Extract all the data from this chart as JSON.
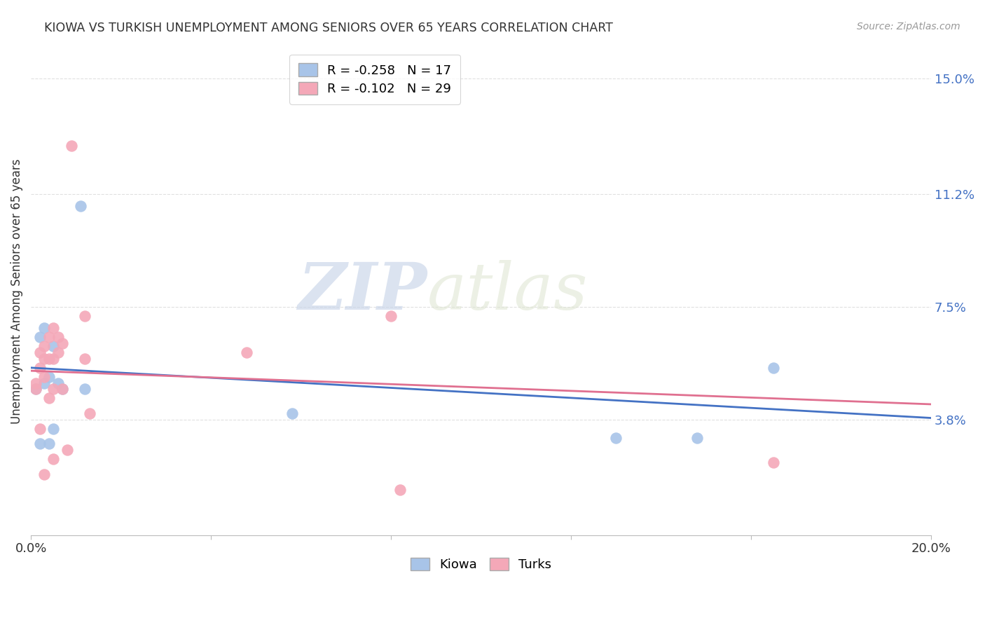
{
  "title": "KIOWA VS TURKISH UNEMPLOYMENT AMONG SENIORS OVER 65 YEARS CORRELATION CHART",
  "source": "Source: ZipAtlas.com",
  "ylabel": "Unemployment Among Seniors over 65 years",
  "xlim": [
    0.0,
    0.2
  ],
  "ylim": [
    0.0,
    0.16
  ],
  "ytick_right_labels": [
    "15.0%",
    "11.2%",
    "7.5%",
    "3.8%"
  ],
  "ytick_right_values": [
    0.15,
    0.112,
    0.075,
    0.038
  ],
  "kiowa_color": "#a8c4e8",
  "turks_color": "#f4a8b8",
  "kiowa_line_color": "#4472c4",
  "turks_line_color": "#e07090",
  "legend_r_kiowa": "R = -0.258",
  "legend_n_kiowa": "N = 17",
  "legend_r_turks": "R = -0.102",
  "legend_n_turks": "N = 29",
  "kiowa_x": [
    0.001,
    0.002,
    0.002,
    0.003,
    0.003,
    0.004,
    0.004,
    0.005,
    0.005,
    0.006,
    0.007,
    0.011,
    0.012,
    0.058,
    0.13,
    0.148,
    0.165
  ],
  "kiowa_y": [
    0.048,
    0.065,
    0.03,
    0.068,
    0.05,
    0.052,
    0.03,
    0.062,
    0.035,
    0.05,
    0.048,
    0.108,
    0.048,
    0.04,
    0.032,
    0.032,
    0.055
  ],
  "turks_x": [
    0.001,
    0.001,
    0.002,
    0.002,
    0.002,
    0.003,
    0.003,
    0.003,
    0.003,
    0.004,
    0.004,
    0.004,
    0.005,
    0.005,
    0.005,
    0.005,
    0.006,
    0.006,
    0.007,
    0.007,
    0.008,
    0.009,
    0.012,
    0.012,
    0.013,
    0.048,
    0.08,
    0.082,
    0.165
  ],
  "turks_y": [
    0.05,
    0.048,
    0.06,
    0.055,
    0.035,
    0.062,
    0.058,
    0.052,
    0.02,
    0.065,
    0.058,
    0.045,
    0.068,
    0.058,
    0.048,
    0.025,
    0.065,
    0.06,
    0.063,
    0.048,
    0.028,
    0.128,
    0.072,
    0.058,
    0.04,
    0.06,
    0.072,
    0.015,
    0.024
  ],
  "kiowa_trendline": [
    0.055,
    0.0385
  ],
  "turks_trendline": [
    0.054,
    0.043
  ],
  "watermark_top": "ZIP",
  "watermark_bottom": "atlas",
  "background_color": "#ffffff",
  "grid_color": "#e0e0e0"
}
